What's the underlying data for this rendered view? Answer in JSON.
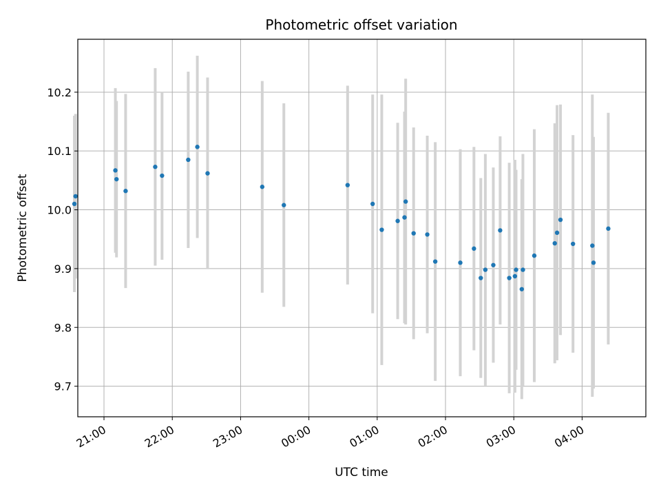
{
  "chart_data": {
    "type": "scatter",
    "title": "Photometric offset variation",
    "xlabel": "UTC time",
    "ylabel": "Photometric offset",
    "xlim": [
      "20:37",
      "04:56"
    ],
    "ylim": [
      9.648,
      10.29
    ],
    "grid": true,
    "x_tick_labels": [
      "21:00",
      "22:00",
      "23:00",
      "00:00",
      "01:00",
      "02:00",
      "03:00",
      "04:00"
    ],
    "y_tick_labels": [
      "9.7",
      "9.8",
      "9.9",
      "10.0",
      "10.1",
      "10.2"
    ],
    "colors": {
      "point": "#1f77b4",
      "errorbar": "#d3d3d3",
      "grid": "#b0b0b0"
    },
    "points": [
      {
        "x": "20:34",
        "y": 10.01,
        "yerr": 0.15
      },
      {
        "x": "20:35",
        "y": 10.023,
        "yerr": 0.14
      },
      {
        "x": "21:10",
        "y": 10.067,
        "yerr": 0.14
      },
      {
        "x": "21:11",
        "y": 10.052,
        "yerr": 0.133
      },
      {
        "x": "21:19",
        "y": 10.032,
        "yerr": 0.165
      },
      {
        "x": "21:45",
        "y": 10.073,
        "yerr": 0.168
      },
      {
        "x": "21:51",
        "y": 10.058,
        "yerr": 0.143
      },
      {
        "x": "22:14",
        "y": 10.085,
        "yerr": 0.15
      },
      {
        "x": "22:22",
        "y": 10.107,
        "yerr": 0.155
      },
      {
        "x": "22:31",
        "y": 10.062,
        "yerr": 0.163
      },
      {
        "x": "23:19",
        "y": 10.039,
        "yerr": 0.18
      },
      {
        "x": "23:38",
        "y": 10.008,
        "yerr": 0.173
      },
      {
        "x": "00:34",
        "y": 10.042,
        "yerr": 0.169
      },
      {
        "x": "00:56",
        "y": 10.01,
        "yerr": 0.186
      },
      {
        "x": "01:04",
        "y": 9.966,
        "yerr": 0.23
      },
      {
        "x": "01:18",
        "y": 9.981,
        "yerr": 0.167
      },
      {
        "x": "01:24",
        "y": 9.987,
        "yerr": 0.18
      },
      {
        "x": "01:25",
        "y": 10.014,
        "yerr": 0.209
      },
      {
        "x": "01:32",
        "y": 9.96,
        "yerr": 0.18
      },
      {
        "x": "01:44",
        "y": 9.958,
        "yerr": 0.168
      },
      {
        "x": "01:51",
        "y": 9.912,
        "yerr": 0.203
      },
      {
        "x": "02:13",
        "y": 9.91,
        "yerr": 0.193
      },
      {
        "x": "02:25",
        "y": 9.934,
        "yerr": 0.173
      },
      {
        "x": "02:31",
        "y": 9.884,
        "yerr": 0.17
      },
      {
        "x": "02:35",
        "y": 9.898,
        "yerr": 0.197
      },
      {
        "x": "02:42",
        "y": 9.906,
        "yerr": 0.166
      },
      {
        "x": "02:48",
        "y": 9.965,
        "yerr": 0.16
      },
      {
        "x": "02:56",
        "y": 9.884,
        "yerr": 0.196
      },
      {
        "x": "03:01",
        "y": 9.887,
        "yerr": 0.198
      },
      {
        "x": "03:02",
        "y": 9.898,
        "yerr": 0.17
      },
      {
        "x": "03:07",
        "y": 9.865,
        "yerr": 0.187
      },
      {
        "x": "03:08",
        "y": 9.898,
        "yerr": 0.197
      },
      {
        "x": "03:18",
        "y": 9.922,
        "yerr": 0.215
      },
      {
        "x": "03:36",
        "y": 9.943,
        "yerr": 0.204
      },
      {
        "x": "03:38",
        "y": 9.961,
        "yerr": 0.217
      },
      {
        "x": "03:41",
        "y": 9.983,
        "yerr": 0.196
      },
      {
        "x": "03:52",
        "y": 9.942,
        "yerr": 0.185
      },
      {
        "x": "04:09",
        "y": 9.939,
        "yerr": 0.257
      },
      {
        "x": "04:10",
        "y": 9.91,
        "yerr": 0.214
      },
      {
        "x": "04:23",
        "y": 9.968,
        "yerr": 0.197
      }
    ]
  }
}
